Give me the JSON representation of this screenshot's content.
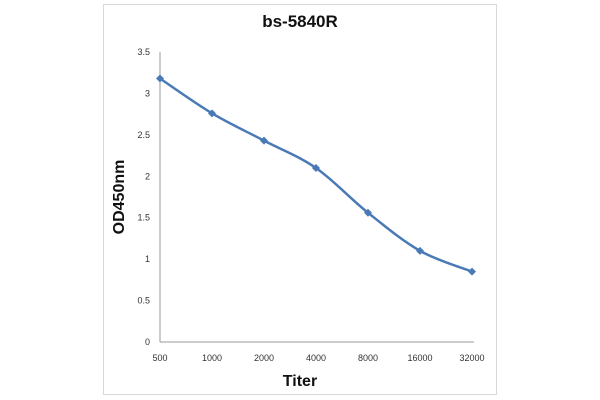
{
  "chart_data": {
    "type": "line",
    "title": "bs-5840R",
    "xlabel": "Titer",
    "ylabel": "OD450nm",
    "categories": [
      "500",
      "1000",
      "2000",
      "4000",
      "8000",
      "16000",
      "32000"
    ],
    "series": [
      {
        "name": "bs-5840R",
        "values": [
          3.18,
          2.76,
          2.43,
          2.1,
          1.56,
          1.1,
          0.85
        ],
        "color": "#4a7ab5"
      }
    ],
    "yticks": [
      "0",
      "0.5",
      "1",
      "1.5",
      "2",
      "2.5",
      "3",
      "3.5"
    ],
    "ylim": [
      0,
      3.5
    ],
    "grid": false,
    "legend": "none"
  }
}
